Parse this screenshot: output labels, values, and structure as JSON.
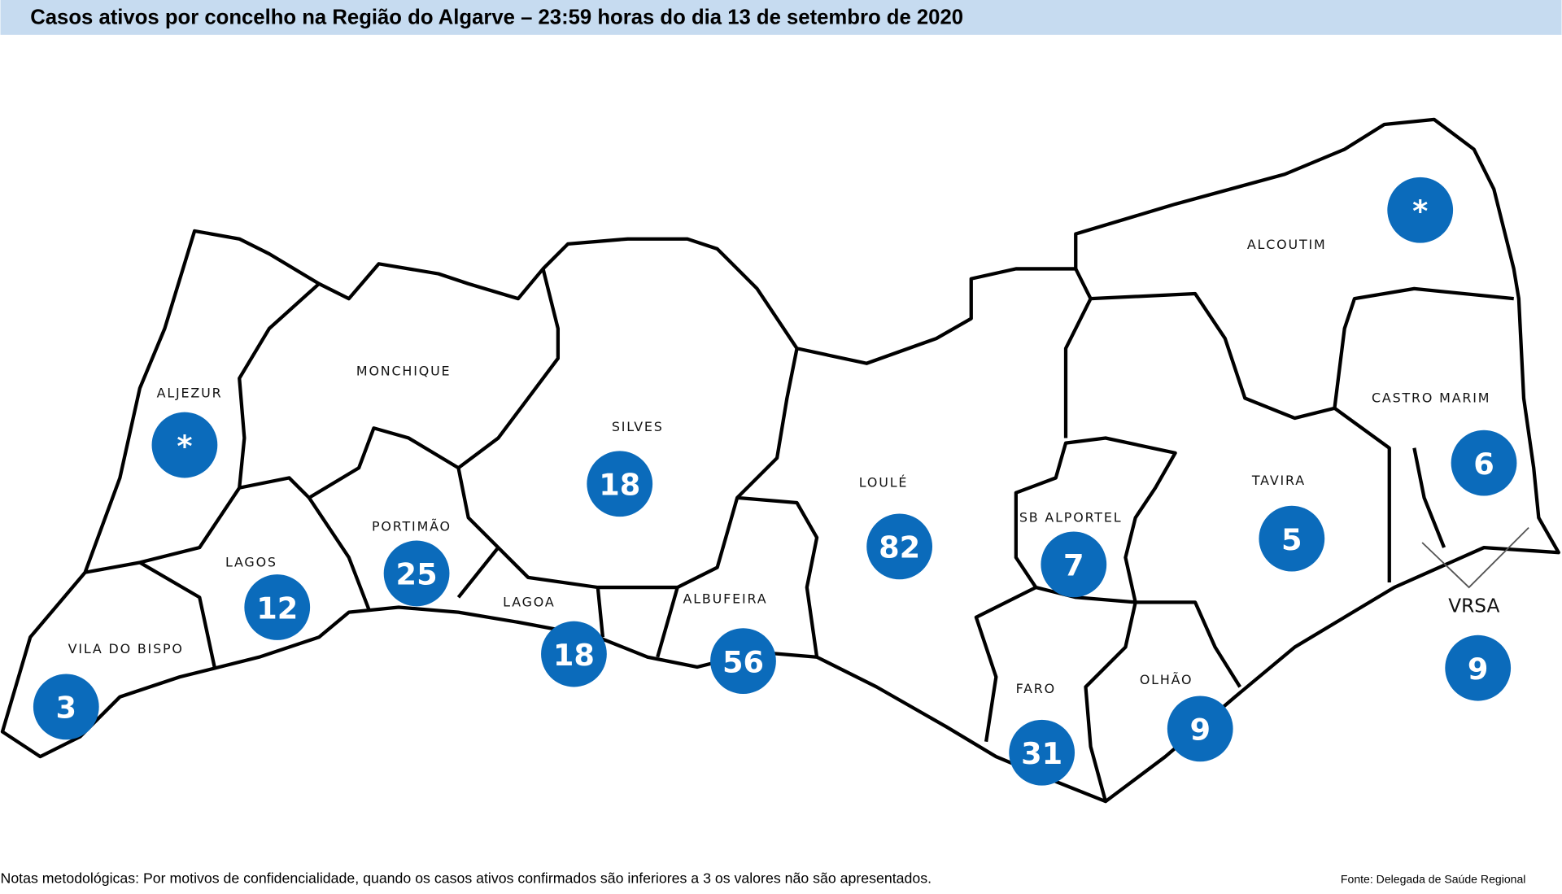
{
  "title": "Casos ativos por concelho na Região do Algarve – 23:59 horas do dia 13 de setembro de 2020",
  "municipalities": [
    {
      "name": "ALJEZUR",
      "value": "*"
    },
    {
      "name": "MONCHIQUE"
    },
    {
      "name": "SILVES",
      "value": 18
    },
    {
      "name": "LOULÉ",
      "value": 82
    },
    {
      "name": "ALCOUTIM",
      "value": "*"
    },
    {
      "name": "CASTRO MARIM",
      "value": 6
    },
    {
      "name": "TAVIRA",
      "value": 5
    },
    {
      "name": "SB ALPORTEL",
      "value": 7
    },
    {
      "name": "PORTIMÃO",
      "value": 25
    },
    {
      "name": "LAGOS",
      "value": 12
    },
    {
      "name": "LAGOA",
      "value": 18
    },
    {
      "name": "ALBUFEIRA",
      "value": 56
    },
    {
      "name": "VILA DO BISPO",
      "value": 3
    },
    {
      "name": "FARO",
      "value": 31
    },
    {
      "name": "OLHÃO",
      "value": 9
    },
    {
      "name": "VRSA",
      "value": 9
    }
  ],
  "notes": "Notas metodológicas: Por motivos de confidencialidade, quando os casos ativos confirmados são inferiores a 3 os valores não são apresentados.",
  "source": "Fonte: Delegada de Saúde Regional"
}
